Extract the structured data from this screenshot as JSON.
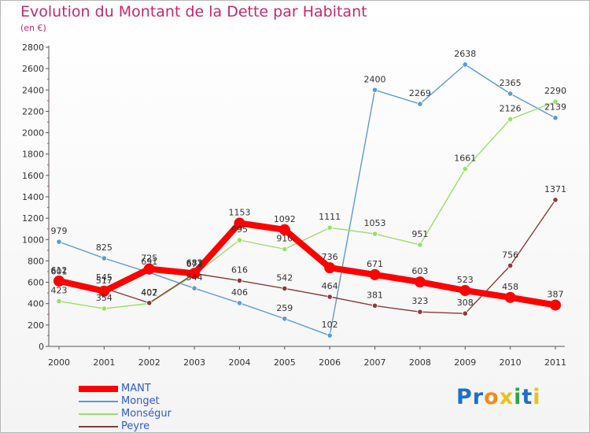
{
  "header": {
    "title": "Evolution du Montant de la Dette par Habitant",
    "subtitle": "(en €)"
  },
  "logo": {
    "text": "Proxiti",
    "colors": [
      "#1d6fc9",
      "#1d6fc9",
      "#f08a1c",
      "#e8c21a",
      "#2aa64b",
      "#1d6fc9",
      "#e8c21a"
    ]
  },
  "chart_data": {
    "type": "line",
    "title": "Evolution du Montant de la Dette par Habitant",
    "subtitle": "(en €)",
    "xlabel": "",
    "ylabel": "",
    "categories": [
      "2000",
      "2001",
      "2002",
      "2003",
      "2004",
      "2005",
      "2006",
      "2007",
      "2008",
      "2009",
      "2010",
      "2011"
    ],
    "ylim": [
      0,
      2800
    ],
    "yticks": [
      0,
      200,
      400,
      600,
      800,
      1000,
      1200,
      1400,
      1600,
      1800,
      2000,
      2200,
      2400,
      2600,
      2800
    ],
    "grid": false,
    "legend_position": "bottom-left",
    "series": [
      {
        "name": "MANT",
        "color": "#ff0000",
        "emphasis": true,
        "values": [
          612,
          517,
          725,
          683,
          1153,
          1092,
          736,
          671,
          603,
          523,
          458,
          387
        ],
        "labels": [
          "612",
          "517",
          "725",
          "683",
          "1153",
          "1092",
          "736",
          "671",
          "603",
          "523",
          "458",
          "387"
        ]
      },
      {
        "name": "Monget",
        "color": "#5b9bd5",
        "values": [
          979,
          825,
          691,
          544,
          406,
          259,
          102,
          2400,
          2269,
          2638,
          2365,
          2139
        ],
        "labels": [
          "979",
          "825",
          "691",
          "544",
          "406",
          "259",
          "102",
          "2400",
          "2269",
          "2638",
          "2365",
          "2139"
        ]
      },
      {
        "name": "Monségur",
        "color": "#99e066",
        "values": [
          423,
          354,
          402,
          671,
          995,
          910,
          1111,
          1053,
          951,
          1661,
          2126,
          2290
        ],
        "labels": [
          "423",
          "354",
          "402",
          "671",
          "995",
          "910",
          "1111",
          "1053",
          "951",
          "1661",
          "2126",
          "2290"
        ]
      },
      {
        "name": "Peyre",
        "color": "#8b3a3a",
        "values": [
          601,
          545,
          407,
          682,
          616,
          542,
          464,
          381,
          323,
          308,
          756,
          1371
        ],
        "labels": [
          "601",
          "545",
          "407",
          "682",
          "616",
          "542",
          "464",
          "381",
          "323",
          "308",
          "756",
          "1371"
        ]
      }
    ]
  }
}
